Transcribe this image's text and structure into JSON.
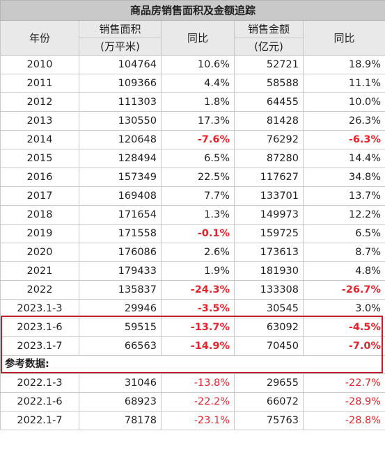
{
  "title": "商品房销售面积及金额追踪",
  "headers": {
    "year": "年份",
    "area_line1": "销售面积",
    "area_line2": "(万平米)",
    "area_yoy": "同比",
    "amount_line1": "销售金额",
    "amount_line2": "(亿元)",
    "amount_yoy": "同比"
  },
  "rows": [
    {
      "year": "2010",
      "area": "104764",
      "area_yoy": "10.6%",
      "amount": "52721",
      "amount_yoy": "18.9%"
    },
    {
      "year": "2011",
      "area": "109366",
      "area_yoy": "4.4%",
      "amount": "58588",
      "amount_yoy": "11.1%"
    },
    {
      "year": "2012",
      "area": "111303",
      "area_yoy": "1.8%",
      "amount": "64455",
      "amount_yoy": "10.0%"
    },
    {
      "year": "2013",
      "area": "130550",
      "area_yoy": "17.3%",
      "amount": "81428",
      "amount_yoy": "26.3%"
    },
    {
      "year": "2014",
      "area": "120648",
      "area_yoy": "-7.6%",
      "amount": "76292",
      "amount_yoy": "-6.3%"
    },
    {
      "year": "2015",
      "area": "128494",
      "area_yoy": "6.5%",
      "amount": "87280",
      "amount_yoy": "14.4%"
    },
    {
      "year": "2016",
      "area": "157349",
      "area_yoy": "22.5%",
      "amount": "117627",
      "amount_yoy": "34.8%"
    },
    {
      "year": "2017",
      "area": "169408",
      "area_yoy": "7.7%",
      "amount": "133701",
      "amount_yoy": "13.7%"
    },
    {
      "year": "2018",
      "area": "171654",
      "area_yoy": "1.3%",
      "amount": "149973",
      "amount_yoy": "12.2%"
    },
    {
      "year": "2019",
      "area": "171558",
      "area_yoy": "-0.1%",
      "amount": "159725",
      "amount_yoy": "6.5%"
    },
    {
      "year": "2020",
      "area": "176086",
      "area_yoy": "2.6%",
      "amount": "173613",
      "amount_yoy": "8.7%"
    },
    {
      "year": "2021",
      "area": "179433",
      "area_yoy": "1.9%",
      "amount": "181930",
      "amount_yoy": "4.8%"
    },
    {
      "year": "2022",
      "area": "135837",
      "area_yoy": "-24.3%",
      "amount": "133308",
      "amount_yoy": "-26.7%"
    },
    {
      "year": "2023.1-3",
      "area": "29946",
      "area_yoy": "-3.5%",
      "amount": "30545",
      "amount_yoy": "3.0%"
    },
    {
      "year": "2023.1-6",
      "area": "59515",
      "area_yoy": "-13.7%",
      "amount": "63092",
      "amount_yoy": "-4.5%"
    },
    {
      "year": "2023.1-7",
      "area": "66563",
      "area_yoy": "-14.9%",
      "amount": "70450",
      "amount_yoy": "-7.0%"
    }
  ],
  "reference_label": "参考数据:",
  "reference_rows": [
    {
      "year": "2022.1-3",
      "area": "31046",
      "area_yoy": "-13.8%",
      "amount": "29655",
      "amount_yoy": "-22.7%"
    },
    {
      "year": "2022.1-6",
      "area": "68923",
      "area_yoy": "-22.2%",
      "amount": "66072",
      "amount_yoy": "-28.9%"
    },
    {
      "year": "2022.1-7",
      "area": "78178",
      "area_yoy": "-23.1%",
      "amount": "75763",
      "amount_yoy": "-28.8%"
    }
  ],
  "colors": {
    "negative": "#e8232b",
    "highlight_border": "#c0202a",
    "title_bg": "#c9c9c9"
  }
}
